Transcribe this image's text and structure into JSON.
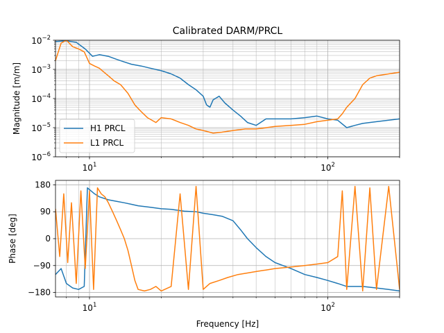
{
  "chart_data": [
    {
      "type": "line",
      "title": "Calibrated DARM/PRCL",
      "xlabel": "",
      "ylabel": "Magnitude [m/m]",
      "xscale": "log",
      "yscale": "log",
      "xlim": [
        7.2,
        200
      ],
      "ylim": [
        1e-06,
        0.01
      ],
      "grid": true,
      "legend_position": "lower-left",
      "x_major_ticks": [
        {
          "value": 10,
          "base": "10",
          "exp": "1"
        },
        {
          "value": 100,
          "base": "10",
          "exp": "2"
        }
      ],
      "y_major_ticks": [
        {
          "value": 1e-06,
          "base": "10",
          "exp": "−6"
        },
        {
          "value": 1e-05,
          "base": "10",
          "exp": "−5"
        },
        {
          "value": 0.0001,
          "base": "10",
          "exp": "−4"
        },
        {
          "value": 0.001,
          "base": "10",
          "exp": "−3"
        },
        {
          "value": 0.01,
          "base": "10",
          "exp": "−2"
        }
      ],
      "series": [
        {
          "name": "H1 PRCL",
          "color": "#1f77b4",
          "points": [
            [
              7.2,
              0.009
            ],
            [
              8,
              0.0095
            ],
            [
              8.8,
              0.0085
            ],
            [
              9.6,
              0.005
            ],
            [
              10.3,
              0.0028
            ],
            [
              11,
              0.0032
            ],
            [
              12,
              0.0028
            ],
            [
              13,
              0.0022
            ],
            [
              14,
              0.0018
            ],
            [
              15,
              0.0015
            ],
            [
              16.5,
              0.0013
            ],
            [
              18,
              0.0011
            ],
            [
              20,
              0.0009
            ],
            [
              22,
              0.0007
            ],
            [
              24,
              0.0005
            ],
            [
              26,
              0.0003
            ],
            [
              28,
              0.0002
            ],
            [
              30,
              0.00012
            ],
            [
              31,
              6e-05
            ],
            [
              32,
              5e-05
            ],
            [
              33,
              9e-05
            ],
            [
              35,
              0.00012
            ],
            [
              37,
              7e-05
            ],
            [
              40,
              4e-05
            ],
            [
              43,
              2.5e-05
            ],
            [
              46,
              1.5e-05
            ],
            [
              50,
              1.2e-05
            ],
            [
              55,
              2e-05
            ],
            [
              60,
              2e-05
            ],
            [
              70,
              2e-05
            ],
            [
              80,
              2.2e-05
            ],
            [
              90,
              2.5e-05
            ],
            [
              100,
              2e-05
            ],
            [
              110,
              1.8e-05
            ],
            [
              120,
              1e-05
            ],
            [
              130,
              1.2e-05
            ],
            [
              140,
              1.4e-05
            ],
            [
              160,
              1.6e-05
            ],
            [
              180,
              1.8e-05
            ],
            [
              200,
              2e-05
            ]
          ]
        },
        {
          "name": "L1 PRCL",
          "color": "#ff7f0e",
          "points": [
            [
              7.2,
              0.002
            ],
            [
              7.6,
              0.008
            ],
            [
              8,
              0.01
            ],
            [
              8.5,
              0.006
            ],
            [
              9,
              0.005
            ],
            [
              9.5,
              0.004
            ],
            [
              10,
              0.0016
            ],
            [
              10.5,
              0.0013
            ],
            [
              11,
              0.0011
            ],
            [
              11.5,
              0.0008
            ],
            [
              12,
              0.0006
            ],
            [
              12.7,
              0.0004
            ],
            [
              13.5,
              0.0003
            ],
            [
              14.5,
              0.00015
            ],
            [
              15.5,
              6e-05
            ],
            [
              16.5,
              3.5e-05
            ],
            [
              17.5,
              2.2e-05
            ],
            [
              19,
              1.5e-05
            ],
            [
              20,
              2.2e-05
            ],
            [
              22,
              2e-05
            ],
            [
              24,
              1.5e-05
            ],
            [
              26,
              1.2e-05
            ],
            [
              28,
              9e-06
            ],
            [
              30,
              8e-06
            ],
            [
              33,
              6.5e-06
            ],
            [
              36,
              7e-06
            ],
            [
              40,
              8e-06
            ],
            [
              45,
              9e-06
            ],
            [
              50,
              9e-06
            ],
            [
              60,
              1.1e-05
            ],
            [
              70,
              1.2e-05
            ],
            [
              80,
              1.3e-05
            ],
            [
              90,
              1.6e-05
            ],
            [
              100,
              1.8e-05
            ],
            [
              110,
              2e-05
            ],
            [
              115,
              3e-05
            ],
            [
              120,
              5e-05
            ],
            [
              130,
              0.0001
            ],
            [
              140,
              0.0003
            ],
            [
              150,
              0.0005
            ],
            [
              160,
              0.0006
            ],
            [
              180,
              0.0007
            ],
            [
              200,
              0.0008
            ]
          ]
        }
      ]
    },
    {
      "type": "line",
      "title": "",
      "xlabel": "Frequency [Hz]",
      "ylabel": "Phase [deg]",
      "xscale": "log",
      "xlim": [
        7.2,
        200
      ],
      "ylim": [
        -195,
        195
      ],
      "grid": true,
      "x_major_ticks": [
        {
          "value": 10,
          "base": "10",
          "exp": "1"
        },
        {
          "value": 100,
          "base": "10",
          "exp": "2"
        }
      ],
      "y_ticks": [
        {
          "value": 180,
          "label": "180"
        },
        {
          "value": 90,
          "label": "90"
        },
        {
          "value": 0,
          "label": "0"
        },
        {
          "value": -90,
          "label": "−90"
        },
        {
          "value": -180,
          "label": "−180"
        }
      ],
      "series": [
        {
          "name": "H1 PRCL",
          "color": "#1f77b4",
          "points": [
            [
              7.2,
              -120
            ],
            [
              7.6,
              -100
            ],
            [
              8,
              -150
            ],
            [
              8.5,
              -165
            ],
            [
              9,
              -170
            ],
            [
              9.5,
              -160
            ],
            [
              9.8,
              170
            ],
            [
              10.5,
              150
            ],
            [
              11,
              140
            ],
            [
              12,
              130
            ],
            [
              13,
              125
            ],
            [
              14,
              120
            ],
            [
              15,
              115
            ],
            [
              16,
              110
            ],
            [
              18,
              105
            ],
            [
              20,
              100
            ],
            [
              22,
              98
            ],
            [
              25,
              92
            ],
            [
              28,
              90
            ],
            [
              30,
              85
            ],
            [
              33,
              80
            ],
            [
              36,
              75
            ],
            [
              40,
              60
            ],
            [
              43,
              30
            ],
            [
              46,
              0
            ],
            [
              50,
              -30
            ],
            [
              55,
              -60
            ],
            [
              60,
              -80
            ],
            [
              70,
              -100
            ],
            [
              80,
              -120
            ],
            [
              90,
              -130
            ],
            [
              100,
              -140
            ],
            [
              110,
              -150
            ],
            [
              120,
              -160
            ],
            [
              140,
              -160
            ],
            [
              160,
              -165
            ],
            [
              180,
              -170
            ],
            [
              200,
              -175
            ]
          ]
        },
        {
          "name": "L1 PRCL",
          "color": "#ff7f0e",
          "points": [
            [
              7.2,
              100
            ],
            [
              7.5,
              -60
            ],
            [
              7.8,
              150
            ],
            [
              8.1,
              -80
            ],
            [
              8.4,
              120
            ],
            [
              8.8,
              -150
            ],
            [
              9.2,
              160
            ],
            [
              9.6,
              -100
            ],
            [
              10,
              160
            ],
            [
              10.4,
              -170
            ],
            [
              10.8,
              170
            ],
            [
              11.2,
              150
            ],
            [
              11.6,
              140
            ],
            [
              12,
              120
            ],
            [
              12.5,
              90
            ],
            [
              13,
              60
            ],
            [
              13.5,
              30
            ],
            [
              14,
              0
            ],
            [
              14.5,
              -40
            ],
            [
              15,
              -90
            ],
            [
              15.5,
              -140
            ],
            [
              16,
              -170
            ],
            [
              17,
              -175
            ],
            [
              18,
              -170
            ],
            [
              19,
              -160
            ],
            [
              20,
              -175
            ],
            [
              22,
              -160
            ],
            [
              24,
              150
            ],
            [
              26,
              -170
            ],
            [
              28,
              175
            ],
            [
              30,
              -170
            ],
            [
              32,
              -150
            ],
            [
              35,
              -140
            ],
            [
              38,
              -130
            ],
            [
              42,
              -120
            ],
            [
              46,
              -115
            ],
            [
              50,
              -110
            ],
            [
              55,
              -105
            ],
            [
              60,
              -100
            ],
            [
              70,
              -95
            ],
            [
              80,
              -90
            ],
            [
              90,
              -85
            ],
            [
              100,
              -80
            ],
            [
              110,
              -60
            ],
            [
              115,
              160
            ],
            [
              120,
              -170
            ],
            [
              130,
              175
            ],
            [
              140,
              -175
            ],
            [
              150,
              170
            ],
            [
              160,
              -170
            ],
            [
              180,
              175
            ],
            [
              200,
              -170
            ]
          ]
        }
      ]
    }
  ]
}
